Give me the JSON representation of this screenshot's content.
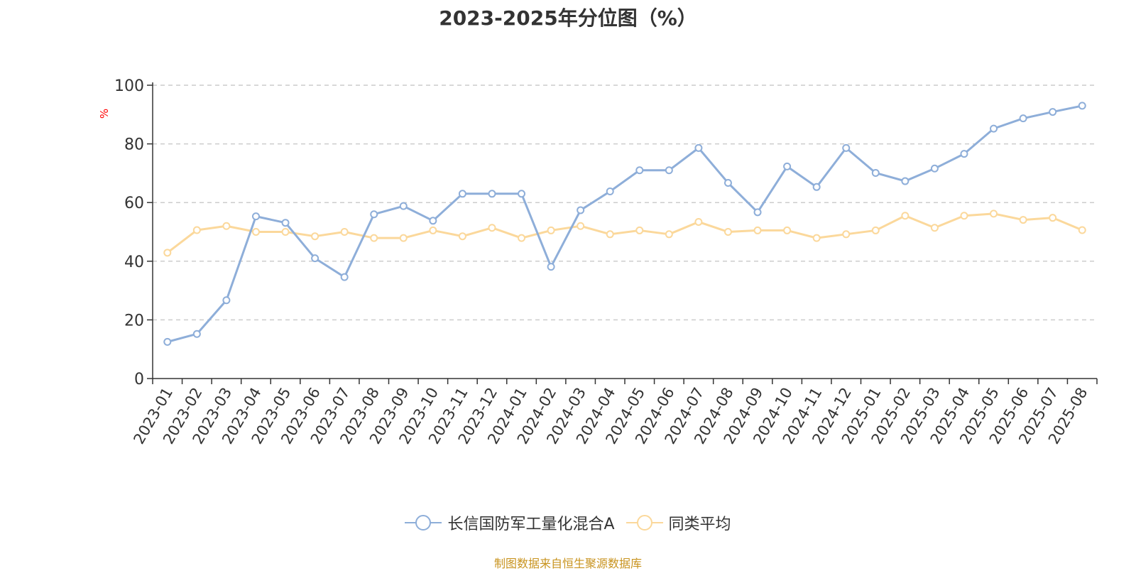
{
  "chart_data": {
    "type": "line",
    "title": "2023-2025年分位图（%）",
    "ylabel": "%",
    "xlabel": "",
    "ylim": [
      0,
      100
    ],
    "yticks": [
      0,
      20,
      40,
      60,
      80,
      100
    ],
    "grid": true,
    "legend_position": "bottom-center",
    "categories": [
      "2023-01",
      "2023-02",
      "2023-03",
      "2023-04",
      "2023-05",
      "2023-06",
      "2023-07",
      "2023-08",
      "2023-09",
      "2023-10",
      "2023-11",
      "2023-12",
      "2024-01",
      "2024-02",
      "2024-03",
      "2024-04",
      "2024-05",
      "2024-06",
      "2024-07",
      "2024-08",
      "2024-09",
      "2024-10",
      "2024-11",
      "2024-12",
      "2025-01",
      "2025-02",
      "2025-03",
      "2025-04",
      "2025-05",
      "2025-06",
      "2025-07",
      "2025-08"
    ],
    "series": [
      {
        "name": "长信国防军工量化混合A",
        "color": "#8eaed9",
        "values": [
          12.5,
          15.2,
          26.7,
          55.3,
          53.1,
          41.0,
          34.6,
          56.0,
          58.8,
          53.8,
          63.0,
          63.0,
          63.0,
          38.1,
          57.4,
          63.8,
          71.0,
          71.0,
          78.6,
          66.7,
          56.7,
          72.3,
          65.3,
          78.6,
          70.1,
          67.3,
          71.6,
          76.6,
          85.2,
          88.7,
          90.9,
          93.0
        ]
      },
      {
        "name": "同类平均",
        "color": "#fbd89b",
        "values": [
          42.9,
          50.6,
          52.0,
          50.0,
          50.0,
          48.5,
          50.0,
          47.9,
          47.9,
          50.5,
          48.5,
          51.4,
          47.9,
          50.5,
          52.0,
          49.2,
          50.5,
          49.2,
          53.4,
          50.0,
          50.5,
          50.5,
          47.9,
          49.2,
          50.5,
          55.5,
          51.4,
          55.5,
          56.2,
          54.1,
          54.8,
          50.6
        ]
      }
    ],
    "source_note": "制图数据来自恒生聚源数据库"
  }
}
